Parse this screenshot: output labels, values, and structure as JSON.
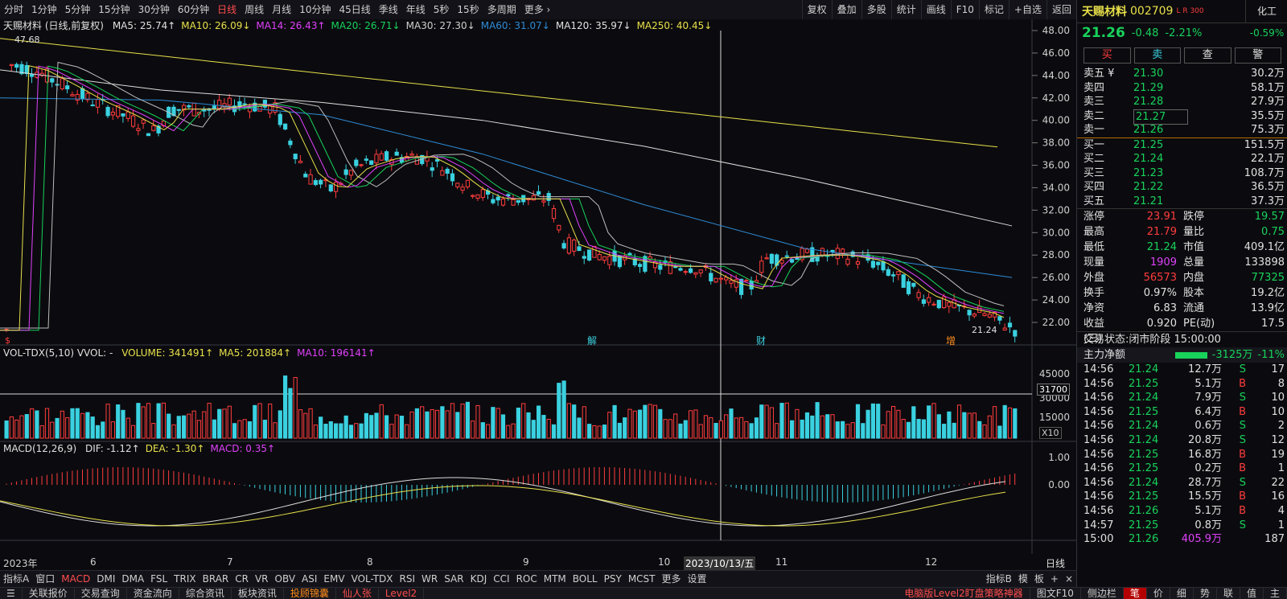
{
  "toolbar": {
    "periods": [
      "分时",
      "1分钟",
      "5分钟",
      "15分钟",
      "30分钟",
      "60分钟",
      "日线",
      "周线",
      "月线",
      "10分钟",
      "45日线",
      "季线",
      "年线",
      "5秒",
      "15秒",
      "多周期",
      "更多 ›"
    ],
    "active_period": "日线",
    "right_buttons": [
      "复权",
      "叠加",
      "多股",
      "统计",
      "画线",
      "F10",
      "标记",
      "+自选",
      "返回"
    ]
  },
  "main_chart": {
    "title": "天赐材料 (日线,前复权)",
    "ma_labels": [
      {
        "text": "MA5: 25.74↑",
        "color": "#e0e0e0"
      },
      {
        "text": "MA10: 26.09↓",
        "color": "#e8e04a"
      },
      {
        "text": "MA14: 26.43↑",
        "color": "#e040fb"
      },
      {
        "text": "MA20: 26.71↓",
        "color": "#18d25b"
      },
      {
        "text": "MA30: 27.30↓",
        "color": "#cfcfcf"
      },
      {
        "text": "MA60: 31.07↓",
        "color": "#2e8bd6"
      },
      {
        "text": "MA120: 35.97↓",
        "color": "#e0e0e0"
      },
      {
        "text": "MA250: 40.45↓",
        "color": "#e8e04a"
      }
    ],
    "y_ticks": [
      "48.00",
      "46.00",
      "44.00",
      "42.00",
      "40.00",
      "38.00",
      "36.00",
      "34.00",
      "32.00",
      "30.00",
      "28.00",
      "26.00",
      "24.00",
      "22.00"
    ],
    "high_label": "47.68",
    "low_label": "21.24",
    "events": [
      "解",
      "财",
      "增"
    ],
    "event_left": "$"
  },
  "volume_chart": {
    "title": "VOL-TDX(5,10) VVOL: -",
    "labels": [
      {
        "text": "VOLUME: 341491↑",
        "color": "#e8e04a"
      },
      {
        "text": "MA5: 201884↑",
        "color": "#e8e04a"
      },
      {
        "text": "MA10: 196141↑",
        "color": "#e040fb"
      }
    ],
    "y_ticks": [
      "45000",
      "30000",
      "15000"
    ],
    "marker": "31700",
    "unit": "X10"
  },
  "macd_chart": {
    "title": "MACD(12,26,9)",
    "labels": [
      {
        "text": "DIF: -1.12↑",
        "color": "#e0e0e0"
      },
      {
        "text": "DEA: -1.30↑",
        "color": "#e8e04a"
      },
      {
        "text": "MACD: 0.35↑",
        "color": "#e040fb"
      }
    ],
    "y_ticks": [
      "1.00",
      "0.00"
    ]
  },
  "x_axis": {
    "labels": [
      "2023年",
      "6",
      "7",
      "8",
      "9",
      "10",
      "2023/10/13/五",
      "11",
      "12"
    ],
    "period_tag": "日线"
  },
  "indicator_tabs": [
    "指标A",
    "窗口",
    "MACD",
    "DMI",
    "DMA",
    "FSL",
    "TRIX",
    "BRAR",
    "CR",
    "VR",
    "OBV",
    "ASI",
    "EMV",
    "VOL-TDX",
    "RSI",
    "WR",
    "SAR",
    "KDJ",
    "CCI",
    "ROC",
    "MTM",
    "BOLL",
    "PSY",
    "MCST",
    "更多",
    "设置"
  ],
  "indicator_active": "MACD",
  "indicator_right": [
    "指标B",
    "模",
    "板",
    "+",
    "×"
  ],
  "status_bar": {
    "left_items": [
      "关联报价",
      "交易查询",
      "资金流向",
      "综合资讯",
      "板块资讯"
    ],
    "orange_item": "投顾锦囊",
    "red_items": [
      "仙人张",
      "Level2"
    ],
    "ad": "电脑版Level2盯盘策略神器",
    "right_items": [
      "图文F10",
      "侧边栏"
    ],
    "tail": [
      "笔",
      "价",
      "细",
      "势",
      "联",
      "值",
      "主"
    ]
  },
  "quote": {
    "name": "天赐材料",
    "code": "002709",
    "tags": "L R 300",
    "industry": "化工",
    "industry_change": "-0.59%",
    "price": "21.26",
    "change": "-0.48",
    "change_pct": "-2.21%",
    "buttons": [
      "买",
      "卖",
      "查",
      "警"
    ]
  },
  "order_book": {
    "asks": [
      {
        "label": "卖五 ¥",
        "price": "21.30",
        "qty": "30.2万"
      },
      {
        "label": "卖四",
        "price": "21.29",
        "qty": "58.1万"
      },
      {
        "label": "卖三",
        "price": "21.28",
        "qty": "27.9万"
      },
      {
        "label": "卖二",
        "price": "21.27",
        "qty": "35.5万"
      },
      {
        "label": "卖一",
        "price": "21.26",
        "qty": "75.3万"
      }
    ],
    "bids": [
      {
        "label": "买一",
        "price": "21.25",
        "qty": "151.5万"
      },
      {
        "label": "买二",
        "price": "21.24",
        "qty": "22.1万"
      },
      {
        "label": "买三",
        "price": "21.23",
        "qty": "108.7万"
      },
      {
        "label": "买四",
        "price": "21.22",
        "qty": "36.5万"
      },
      {
        "label": "买五",
        "price": "21.21",
        "qty": "37.3万"
      }
    ]
  },
  "stats": [
    {
      "k1": "涨停",
      "v1": "23.91",
      "c1": "red",
      "k2": "跌停",
      "v2": "19.57",
      "c2": "green"
    },
    {
      "k1": "最高",
      "v1": "21.79",
      "c1": "red",
      "k2": "量比",
      "v2": "0.75",
      "c2": "green"
    },
    {
      "k1": "最低",
      "v1": "21.24",
      "c1": "green",
      "k2": "市值",
      "v2": "409.1亿",
      "c2": "white"
    },
    {
      "k1": "现量",
      "v1": "1909",
      "c1": "purple",
      "k2": "总量",
      "v2": "133898",
      "c2": "white"
    },
    {
      "k1": "外盘",
      "v1": "56573",
      "c1": "red",
      "k2": "内盘",
      "v2": "77325",
      "c2": "green"
    },
    {
      "k1": "换手",
      "v1": "0.97%",
      "c1": "white",
      "k2": "股本",
      "v2": "19.2亿",
      "c2": "white"
    },
    {
      "k1": "净资",
      "v1": "6.83",
      "c1": "white",
      "k2": "流通",
      "v2": "13.9亿",
      "c2": "white"
    },
    {
      "k1": "收益(三)",
      "v1": "0.920",
      "c1": "white",
      "k2": "PE(动)",
      "v2": "17.5",
      "c2": "white"
    }
  ],
  "trade_status": {
    "label": "交易状态:",
    "value": "闭市阶段 15:00:00"
  },
  "main_flow": {
    "label": "主力净额",
    "value": "-3125万",
    "pct": "-11%"
  },
  "ticks": [
    {
      "t": "14:56",
      "p": "21.24",
      "v": "12.7万",
      "s": "S",
      "n": "17"
    },
    {
      "t": "14:56",
      "p": "21.25",
      "v": "5.1万",
      "s": "B",
      "n": "8"
    },
    {
      "t": "14:56",
      "p": "21.24",
      "v": "7.9万",
      "s": "S",
      "n": "10"
    },
    {
      "t": "14:56",
      "p": "21.25",
      "v": "6.4万",
      "s": "B",
      "n": "10"
    },
    {
      "t": "14:56",
      "p": "21.24",
      "v": "0.6万",
      "s": "S",
      "n": "2"
    },
    {
      "t": "14:56",
      "p": "21.24",
      "v": "20.8万",
      "s": "S",
      "n": "12"
    },
    {
      "t": "14:56",
      "p": "21.25",
      "v": "16.8万",
      "s": "B",
      "n": "19"
    },
    {
      "t": "14:56",
      "p": "21.25",
      "v": "0.2万",
      "s": "B",
      "n": "1"
    },
    {
      "t": "14:56",
      "p": "21.24",
      "v": "28.7万",
      "s": "S",
      "n": "22"
    },
    {
      "t": "14:56",
      "p": "21.25",
      "v": "15.5万",
      "s": "B",
      "n": "16"
    },
    {
      "t": "14:56",
      "p": "21.26",
      "v": "5.1万",
      "s": "B",
      "n": "4"
    },
    {
      "t": "14:57",
      "p": "21.25",
      "v": "0.8万",
      "s": "S",
      "n": "1"
    },
    {
      "t": "15:00",
      "p": "21.26",
      "v": "405.9万",
      "s": "",
      "n": "187"
    }
  ],
  "colors": {
    "up": "#ff3c3c",
    "down": "#3ad1e0",
    "bg": "#0b0b0f",
    "accent": "#ff4d4d"
  }
}
